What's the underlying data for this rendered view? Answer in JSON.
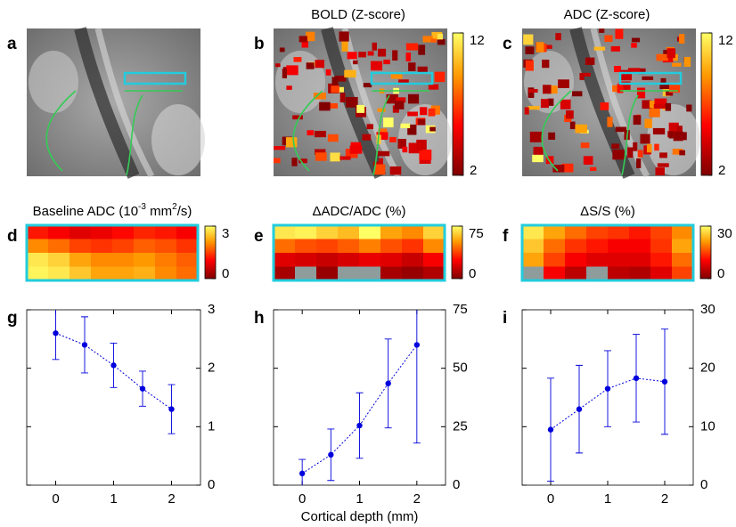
{
  "chart_data": [
    {
      "type": "image",
      "label": "a"
    },
    {
      "type": "image",
      "label": "b",
      "title": "BOLD (Z-score)",
      "overlay": true,
      "clim": [
        2,
        12
      ],
      "cticks": [
        2,
        12
      ]
    },
    {
      "type": "image",
      "label": "c",
      "title": "ADC (Z-score)",
      "overlay": true,
      "clim": [
        2,
        12
      ],
      "cticks": [
        2,
        12
      ]
    },
    {
      "type": "heatmap",
      "label": "d",
      "title_parts": [
        "Baseline ADC (10",
        "-3",
        " mm",
        "2",
        "/s)"
      ],
      "clim": [
        0,
        3
      ],
      "cticks": [
        0,
        3
      ],
      "values": [
        [
          1.2,
          1.0,
          0.8,
          0.9,
          1.1,
          1.3,
          1.2,
          1.0
        ],
        [
          2.0,
          1.8,
          1.5,
          1.4,
          1.5,
          1.7,
          1.6,
          1.4
        ],
        [
          2.8,
          2.6,
          2.2,
          2.0,
          2.0,
          2.1,
          1.9,
          1.7
        ],
        [
          2.9,
          2.8,
          2.5,
          2.2,
          2.2,
          2.3,
          2.0,
          1.8
        ]
      ]
    },
    {
      "type": "heatmap",
      "label": "e",
      "title": "ΔADC/ADC (%)",
      "clim": [
        0,
        75
      ],
      "cticks": [
        0,
        75
      ],
      "values": [
        [
          70,
          72,
          65,
          60,
          75,
          55,
          50,
          65
        ],
        [
          45,
          40,
          38,
          42,
          48,
          40,
          35,
          50
        ],
        [
          20,
          18,
          15,
          18,
          22,
          20,
          15,
          25
        ],
        [
          8,
          null,
          5,
          null,
          null,
          8,
          5,
          10
        ]
      ]
    },
    {
      "type": "heatmap",
      "label": "f",
      "title": "ΔS/S (%)",
      "clim": [
        0,
        30
      ],
      "cticks": [
        0,
        30
      ],
      "values": [
        [
          28,
          22,
          18,
          15,
          14,
          12,
          15,
          20
        ],
        [
          25,
          18,
          14,
          12,
          10,
          10,
          14,
          22
        ],
        [
          22,
          15,
          10,
          8,
          8,
          8,
          12,
          18
        ],
        [
          null,
          10,
          5,
          null,
          5,
          4,
          8,
          15
        ]
      ]
    },
    {
      "type": "line",
      "label": "g",
      "color": "#0000dd",
      "x": [
        0,
        0.5,
        1,
        1.5,
        2
      ],
      "values": [
        2.6,
        2.4,
        2.05,
        1.65,
        1.3
      ],
      "errors": [
        0.45,
        0.48,
        0.38,
        0.3,
        0.42
      ],
      "xlim": [
        -0.5,
        2.5
      ],
      "xticks": [
        0,
        1,
        2
      ],
      "ylim": [
        0,
        3
      ],
      "yticks": [
        0,
        1,
        2,
        3
      ]
    },
    {
      "type": "line",
      "label": "h",
      "color": "#0000dd",
      "x": [
        0,
        0.5,
        1,
        1.5,
        2
      ],
      "values": [
        5,
        13,
        25.5,
        43.5,
        60
      ],
      "errors": [
        6,
        11,
        14,
        19,
        42
      ],
      "xlim": [
        -0.5,
        2.5
      ],
      "xticks": [
        0,
        1,
        2
      ],
      "ylim": [
        0,
        75
      ],
      "yticks": [
        0,
        25,
        50,
        75
      ],
      "xlabel": "Cortical depth (mm)"
    },
    {
      "type": "line",
      "label": "i",
      "color": "#0000dd",
      "x": [
        0,
        0.5,
        1,
        1.5,
        2
      ],
      "values": [
        9.5,
        13,
        16.5,
        18.3,
        17.7
      ],
      "errors": [
        8.8,
        7.5,
        6.5,
        7.5,
        9
      ],
      "xlim": [
        -0.5,
        2.5
      ],
      "xticks": [
        0,
        1,
        2
      ],
      "ylim": [
        0,
        30
      ],
      "yticks": [
        0,
        10,
        20,
        30
      ]
    }
  ]
}
